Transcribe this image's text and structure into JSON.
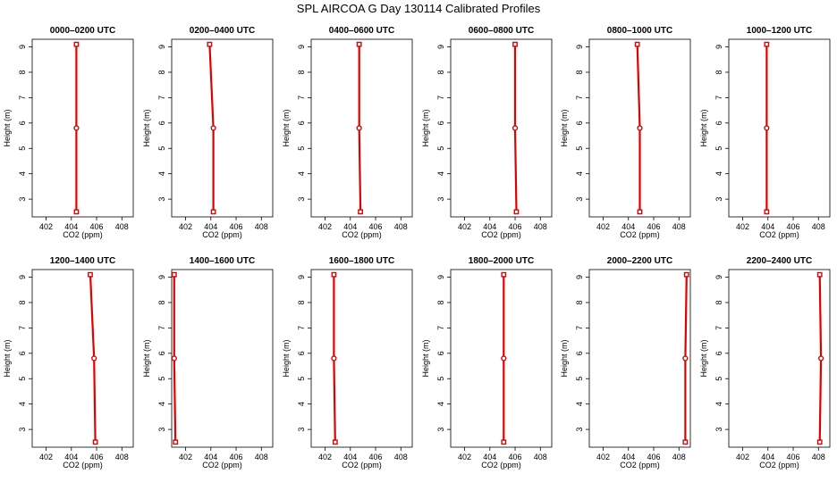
{
  "figure": {
    "title": "SPL AIRCOA G  Day 130114  Calibrated Profiles"
  },
  "chart_data": [
    {
      "type": "line",
      "title": "0000–0200 UTC",
      "xlabel": "CO2 (ppm)",
      "ylabel": "Height (m)",
      "xlim": [
        400.9,
        408.9
      ],
      "ylim": [
        2.3,
        9.3
      ],
      "xticks": [
        402,
        404,
        406,
        408
      ],
      "yticks": [
        3,
        4,
        5,
        6,
        7,
        8,
        9
      ],
      "grid": false,
      "series": [
        {
          "x": [
            404.4,
            404.4,
            404.4
          ],
          "y": [
            2.5,
            5.8,
            9.1
          ]
        }
      ]
    },
    {
      "type": "line",
      "title": "0200–0400 UTC",
      "xlabel": "CO2 (ppm)",
      "ylabel": "Height (m)",
      "xlim": [
        400.9,
        408.9
      ],
      "ylim": [
        2.3,
        9.3
      ],
      "xticks": [
        402,
        404,
        406,
        408
      ],
      "yticks": [
        3,
        4,
        5,
        6,
        7,
        8,
        9
      ],
      "grid": false,
      "series": [
        {
          "x": [
            404.2,
            404.2,
            403.9
          ],
          "y": [
            2.5,
            5.8,
            9.1
          ]
        }
      ]
    },
    {
      "type": "line",
      "title": "0400–0600 UTC",
      "xlabel": "CO2 (ppm)",
      "ylabel": "Height (m)",
      "xlim": [
        400.9,
        408.9
      ],
      "ylim": [
        2.3,
        9.3
      ],
      "xticks": [
        402,
        404,
        406,
        408
      ],
      "yticks": [
        3,
        4,
        5,
        6,
        7,
        8,
        9
      ],
      "grid": false,
      "series": [
        {
          "x": [
            404.8,
            404.7,
            404.7
          ],
          "y": [
            2.5,
            5.8,
            9.1
          ]
        }
      ]
    },
    {
      "type": "line",
      "title": "0600–0800 UTC",
      "xlabel": "CO2 (ppm)",
      "ylabel": "Height (m)",
      "xlim": [
        400.9,
        408.9
      ],
      "ylim": [
        2.3,
        9.3
      ],
      "xticks": [
        402,
        404,
        406,
        408
      ],
      "yticks": [
        3,
        4,
        5,
        6,
        7,
        8,
        9
      ],
      "grid": false,
      "series": [
        {
          "x": [
            406.1,
            406.0,
            406.0
          ],
          "y": [
            2.5,
            5.8,
            9.1
          ]
        }
      ]
    },
    {
      "type": "line",
      "title": "0800–1000 UTC",
      "xlabel": "CO2 (ppm)",
      "ylabel": "Height (m)",
      "xlim": [
        400.9,
        408.9
      ],
      "ylim": [
        2.3,
        9.3
      ],
      "xticks": [
        402,
        404,
        406,
        408
      ],
      "yticks": [
        3,
        4,
        5,
        6,
        7,
        8,
        9
      ],
      "grid": false,
      "series": [
        {
          "x": [
            404.9,
            404.9,
            404.7
          ],
          "y": [
            2.5,
            5.8,
            9.1
          ]
        }
      ]
    },
    {
      "type": "line",
      "title": "1000–1200 UTC",
      "xlabel": "CO2 (ppm)",
      "ylabel": "Height (m)",
      "xlim": [
        400.9,
        408.9
      ],
      "ylim": [
        2.3,
        9.3
      ],
      "xticks": [
        402,
        404,
        406,
        408
      ],
      "yticks": [
        3,
        4,
        5,
        6,
        7,
        8,
        9
      ],
      "grid": false,
      "series": [
        {
          "x": [
            403.9,
            403.9,
            403.9
          ],
          "y": [
            2.5,
            5.8,
            9.1
          ]
        }
      ]
    },
    {
      "type": "line",
      "title": "1200–1400 UTC",
      "xlabel": "CO2 (ppm)",
      "ylabel": "Height (m)",
      "xlim": [
        400.9,
        408.9
      ],
      "ylim": [
        2.3,
        9.3
      ],
      "xticks": [
        402,
        404,
        406,
        408
      ],
      "yticks": [
        3,
        4,
        5,
        6,
        7,
        8,
        9
      ],
      "grid": false,
      "series": [
        {
          "x": [
            405.9,
            405.8,
            405.5
          ],
          "y": [
            2.5,
            5.8,
            9.1
          ]
        }
      ]
    },
    {
      "type": "line",
      "title": "1400–1600 UTC",
      "xlabel": "CO2 (ppm)",
      "ylabel": "Height (m)",
      "xlim": [
        400.9,
        408.9
      ],
      "ylim": [
        2.3,
        9.3
      ],
      "xticks": [
        402,
        404,
        406,
        408
      ],
      "yticks": [
        3,
        4,
        5,
        6,
        7,
        8,
        9
      ],
      "grid": false,
      "series": [
        {
          "x": [
            401.2,
            401.1,
            401.1
          ],
          "y": [
            2.5,
            5.8,
            9.1
          ]
        }
      ]
    },
    {
      "type": "line",
      "title": "1600–1800 UTC",
      "xlabel": "CO2 (ppm)",
      "ylabel": "Height (m)",
      "xlim": [
        400.9,
        408.9
      ],
      "ylim": [
        2.3,
        9.3
      ],
      "xticks": [
        402,
        404,
        406,
        408
      ],
      "yticks": [
        3,
        4,
        5,
        6,
        7,
        8,
        9
      ],
      "grid": false,
      "series": [
        {
          "x": [
            402.8,
            402.7,
            402.7
          ],
          "y": [
            2.5,
            5.8,
            9.1
          ]
        }
      ]
    },
    {
      "type": "line",
      "title": "1800–2000 UTC",
      "xlabel": "CO2 (ppm)",
      "ylabel": "Height (m)",
      "xlim": [
        400.9,
        408.9
      ],
      "ylim": [
        2.3,
        9.3
      ],
      "xticks": [
        402,
        404,
        406,
        408
      ],
      "yticks": [
        3,
        4,
        5,
        6,
        7,
        8,
        9
      ],
      "grid": false,
      "series": [
        {
          "x": [
            405.1,
            405.1,
            405.1
          ],
          "y": [
            2.5,
            5.8,
            9.1
          ]
        }
      ]
    },
    {
      "type": "line",
      "title": "2000–2200 UTC",
      "xlabel": "CO2 (ppm)",
      "ylabel": "Height (m)",
      "xlim": [
        400.9,
        408.9
      ],
      "ylim": [
        2.3,
        9.3
      ],
      "xticks": [
        402,
        404,
        406,
        408
      ],
      "yticks": [
        3,
        4,
        5,
        6,
        7,
        8,
        9
      ],
      "grid": false,
      "series": [
        {
          "x": [
            408.5,
            408.5,
            408.6
          ],
          "y": [
            2.5,
            5.8,
            9.1
          ]
        }
      ]
    },
    {
      "type": "line",
      "title": "2200–2400 UTC",
      "xlabel": "CO2 (ppm)",
      "ylabel": "Height (m)",
      "xlim": [
        400.9,
        408.9
      ],
      "ylim": [
        2.3,
        9.3
      ],
      "xticks": [
        402,
        404,
        406,
        408
      ],
      "yticks": [
        3,
        4,
        5,
        6,
        7,
        8,
        9
      ],
      "grid": false,
      "series": [
        {
          "x": [
            408.1,
            408.2,
            408.1
          ],
          "y": [
            2.5,
            5.8,
            9.1
          ]
        }
      ]
    }
  ],
  "style": {
    "series_color": "#e00000",
    "axis_color": "#000000",
    "background": "#ffffff"
  }
}
